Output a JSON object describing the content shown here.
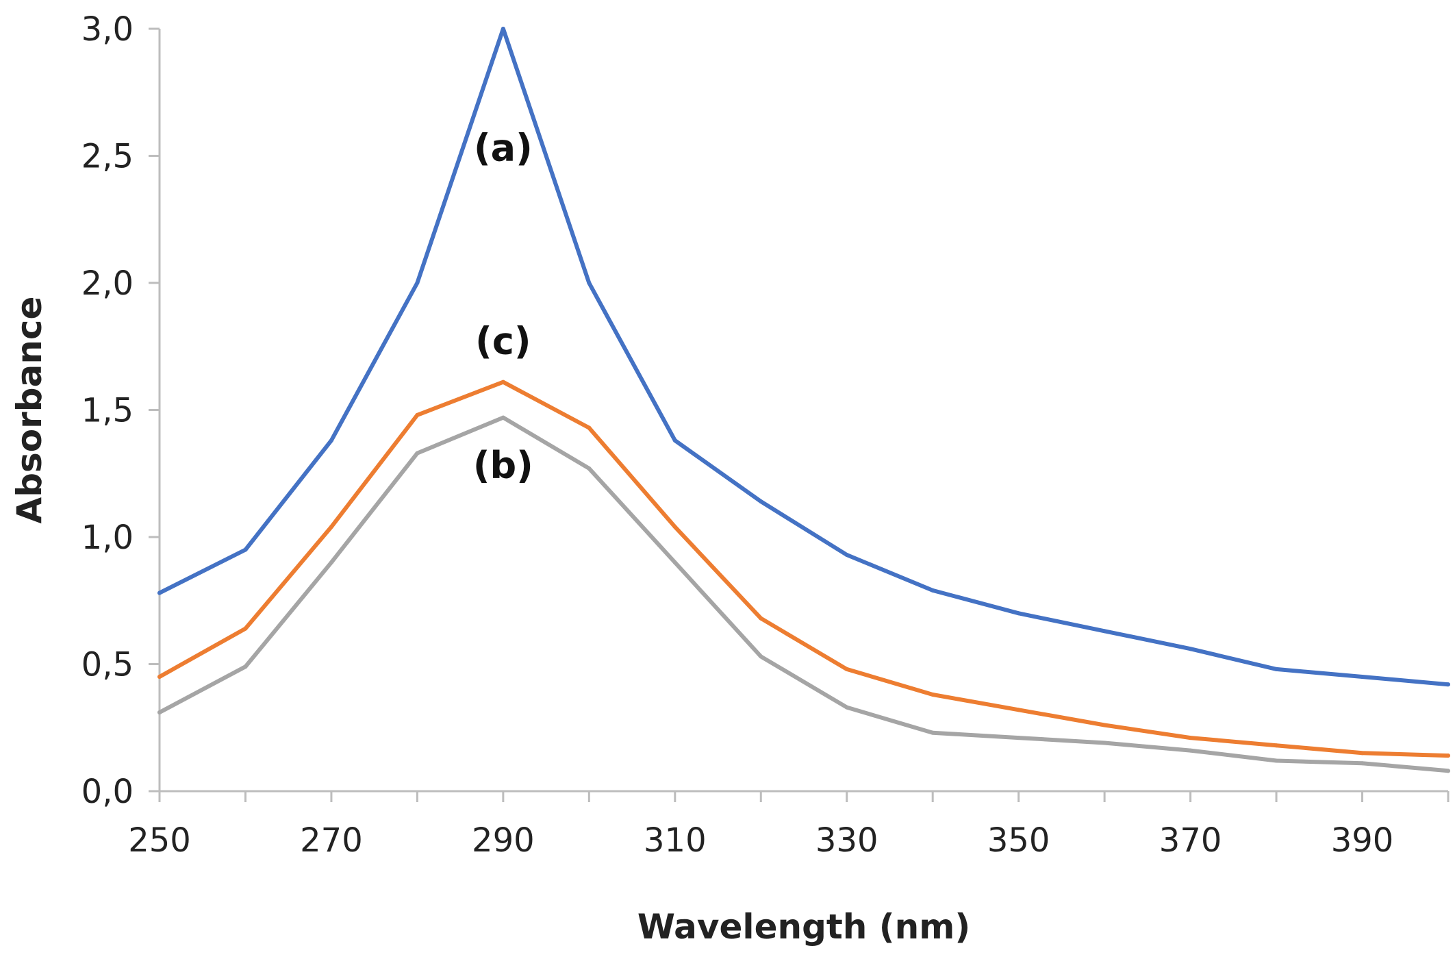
{
  "chart_data": {
    "type": "line",
    "title": "",
    "xlabel": "Wavelength (nm)",
    "ylabel": "Absorbance",
    "xlim": [
      250,
      400
    ],
    "ylim": [
      0,
      3
    ],
    "grid": false,
    "x": [
      250,
      260,
      270,
      280,
      290,
      300,
      310,
      320,
      330,
      340,
      350,
      360,
      370,
      380,
      390,
      400
    ],
    "x_ticks": [
      250,
      270,
      290,
      310,
      330,
      350,
      370,
      390
    ],
    "x_tick_labels": [
      "250",
      "270",
      "290",
      "310",
      "330",
      "350",
      "370",
      "390"
    ],
    "y_ticks": [
      0,
      0.5,
      1,
      1.5,
      2,
      2.5,
      3
    ],
    "y_tick_labels": [
      "0,0",
      "0,5",
      "1,0",
      "1,5",
      "2,0",
      "2,5",
      "3,0"
    ],
    "series": [
      {
        "name": "(a)",
        "color": "#4472c4",
        "values": [
          0.78,
          0.95,
          1.38,
          2.0,
          3.0,
          2.0,
          1.38,
          1.14,
          0.93,
          0.79,
          0.7,
          0.63,
          0.56,
          0.48,
          0.45,
          0.42
        ],
        "label_at": [
          290,
          2.53
        ]
      },
      {
        "name": "(b)",
        "color": "#a5a5a5",
        "values": [
          0.31,
          0.49,
          0.9,
          1.33,
          1.47,
          1.27,
          0.9,
          0.53,
          0.33,
          0.23,
          0.21,
          0.19,
          0.16,
          0.12,
          0.11,
          0.08
        ],
        "label_at": [
          290,
          1.28
        ]
      },
      {
        "name": "(c)",
        "color": "#ed7d31",
        "values": [
          0.45,
          0.64,
          1.04,
          1.48,
          1.61,
          1.43,
          1.04,
          0.68,
          0.48,
          0.38,
          0.32,
          0.26,
          0.21,
          0.18,
          0.15,
          0.14
        ],
        "label_at": [
          290,
          1.77
        ]
      }
    ]
  }
}
